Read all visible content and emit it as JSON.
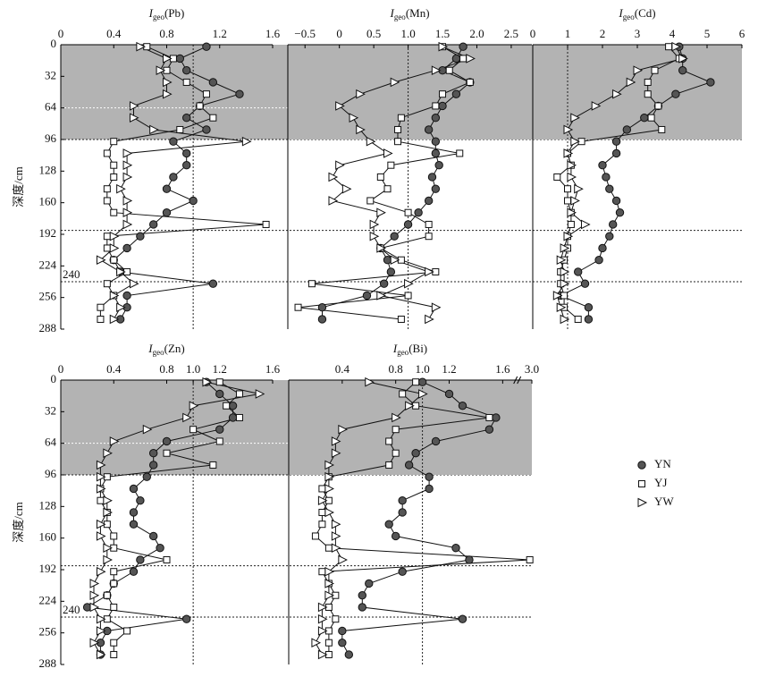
{
  "chart_data": [
    {
      "type": "line",
      "title_main": "I",
      "title_sub": "geo",
      "title_rest": "(Pb)",
      "ylabel": "深度/cm",
      "annotation": "240",
      "xlim": [
        0,
        1.6
      ],
      "xticks": [
        0,
        0.4,
        0.8,
        1.2,
        1.6
      ],
      "ylim": [
        0,
        288
      ],
      "y_inverted": true,
      "yticks": [
        0,
        32,
        64,
        96,
        128,
        160,
        192,
        224,
        256,
        288
      ],
      "shade": [
        0,
        96
      ],
      "reference_depths": [
        64,
        96,
        188,
        240
      ],
      "reference_x": 1,
      "y": [
        2,
        14,
        26,
        38,
        50,
        62,
        74,
        86,
        98,
        110,
        122,
        134,
        146,
        158,
        170,
        182,
        194,
        206,
        218,
        230,
        242,
        254,
        266,
        278
      ],
      "series": [
        {
          "name": "YN",
          "marker": "circle",
          "color": "#555555",
          "values": [
            1.1,
            0.9,
            0.95,
            1.15,
            1.35,
            1.05,
            0.95,
            1.1,
            0.85,
            0.95,
            0.95,
            0.85,
            0.8,
            1.0,
            0.8,
            0.7,
            0.6,
            0.5,
            0.4,
            0.45,
            1.15,
            0.5,
            0.5,
            0.45
          ]
        },
        {
          "name": "YJ",
          "marker": "square",
          "color": "#ffffff",
          "values": [
            0.65,
            0.85,
            0.8,
            0.95,
            1.1,
            1.05,
            1.15,
            0.9,
            0.4,
            0.35,
            0.4,
            0.4,
            0.35,
            0.35,
            0.4,
            1.55,
            0.35,
            0.35,
            0.4,
            0.5,
            0.35,
            0.4,
            0.3,
            0.3
          ]
        },
        {
          "name": "YW",
          "marker": "triangle",
          "color": "#ffffff",
          "values": [
            0.6,
            0.8,
            0.75,
            0.8,
            0.8,
            0.55,
            0.55,
            0.7,
            1.4,
            0.5,
            0.5,
            0.5,
            0.45,
            0.5,
            0.5,
            0.5,
            0.4,
            0.4,
            0.3,
            0.45,
            0.55,
            0.4,
            0.45,
            0.4
          ]
        }
      ]
    },
    {
      "type": "line",
      "title_main": "I",
      "title_sub": "geo",
      "title_rest": "(Mn)",
      "xlim": [
        -0.75,
        2.8
      ],
      "xticks": [
        {
          "value": -0.5,
          "label": "−0.5"
        },
        0,
        0.5,
        {
          "value": 1,
          "label": "1.0"
        },
        1.5,
        {
          "value": 2,
          "label": "2.0"
        },
        2.5
      ],
      "ylim": [
        0,
        288
      ],
      "y_inverted": true,
      "shade": [
        0,
        96
      ],
      "reference_x": 1,
      "y": [
        2,
        14,
        26,
        38,
        50,
        62,
        74,
        86,
        98,
        110,
        122,
        134,
        146,
        158,
        170,
        182,
        194,
        206,
        218,
        230,
        242,
        254,
        266,
        278
      ],
      "series": [
        {
          "name": "YN",
          "marker": "circle",
          "color": "#555555",
          "values": [
            1.8,
            1.7,
            1.5,
            1.9,
            1.7,
            1.5,
            1.4,
            1.3,
            1.4,
            1.4,
            1.45,
            1.35,
            1.4,
            1.3,
            1.15,
            1.0,
            0.8,
            0.6,
            0.7,
            0.75,
            0.65,
            0.4,
            -0.25,
            -0.25
          ]
        },
        {
          "name": "YJ",
          "marker": "square",
          "color": "#ffffff",
          "values": [
            1.5,
            1.8,
            1.6,
            1.9,
            1.5,
            1.4,
            0.9,
            0.85,
            0.85,
            1.75,
            0.75,
            0.6,
            0.7,
            0.45,
            1.0,
            1.3,
            1.3,
            0.6,
            0.9,
            1.4,
            -0.4,
            1.0,
            -0.6,
            0.9
          ]
        },
        {
          "name": "YW",
          "marker": "triangle",
          "color": "#ffffff",
          "values": [
            1.5,
            1.9,
            1.4,
            0.8,
            0.3,
            0.0,
            0.2,
            0.3,
            0.45,
            0.7,
            0.0,
            -0.1,
            0.1,
            -0.1,
            0.6,
            0.5,
            0.5,
            0.6,
            0.8,
            1.3,
            1.0,
            0.6,
            1.4,
            1.3
          ]
        }
      ]
    },
    {
      "type": "line",
      "title_main": "I",
      "title_sub": "geo",
      "title_rest": "(Cd)",
      "xlim": [
        0,
        6
      ],
      "xticks": [
        0,
        1,
        2,
        3,
        4,
        5,
        6
      ],
      "ylim": [
        0,
        288
      ],
      "y_inverted": true,
      "shade": [
        0,
        96
      ],
      "reference_x": 1,
      "y": [
        2,
        14,
        26,
        38,
        50,
        62,
        74,
        86,
        98,
        110,
        122,
        134,
        146,
        158,
        170,
        182,
        194,
        206,
        218,
        230,
        242,
        254,
        266,
        278
      ],
      "series": [
        {
          "name": "YN",
          "marker": "circle",
          "color": "#555555",
          "values": [
            4.2,
            4.3,
            4.3,
            5.1,
            4.1,
            3.6,
            3.2,
            2.7,
            2.4,
            2.4,
            2.0,
            2.1,
            2.2,
            2.4,
            2.5,
            2.3,
            2.2,
            2.0,
            1.9,
            1.3,
            1.5,
            0.8,
            1.6,
            1.6
          ]
        },
        {
          "name": "YJ",
          "marker": "square",
          "color": "#ffffff",
          "values": [
            3.9,
            4.2,
            3.5,
            3.3,
            3.3,
            3.6,
            3.4,
            3.7,
            1.4,
            1.0,
            1.1,
            0.7,
            1.0,
            1.0,
            1.1,
            1.1,
            1.0,
            1.0,
            0.9,
            0.8,
            0.8,
            0.9,
            0.9,
            1.3
          ]
        },
        {
          "name": "YW",
          "marker": "triangle",
          "color": "#ffffff",
          "values": [
            4.1,
            4.3,
            3.0,
            2.8,
            2.4,
            1.8,
            1.2,
            1.0,
            1.2,
            1.0,
            1.1,
            1.1,
            1.3,
            1.2,
            1.1,
            1.5,
            1.0,
            0.9,
            0.8,
            0.9,
            0.9,
            0.7,
            0.8,
            0.9
          ]
        }
      ]
    },
    {
      "type": "line",
      "title_main": "I",
      "title_sub": "geo",
      "title_rest": "(Zn)",
      "ylabel": "深度/cm",
      "annotation": "240",
      "xlim": [
        0,
        1.6
      ],
      "xticks": [
        0,
        0.4,
        0.8,
        {
          "value": 1,
          "label": "1.0"
        },
        1.2,
        1.6
      ],
      "ylim": [
        0,
        288
      ],
      "y_inverted": true,
      "yticks": [
        0,
        32,
        64,
        96,
        128,
        160,
        192,
        224,
        256,
        288
      ],
      "shade": [
        0,
        96
      ],
      "reference_depths": [
        64,
        96,
        188,
        240
      ],
      "reference_x": 1,
      "y": [
        2,
        14,
        26,
        38,
        50,
        62,
        74,
        86,
        98,
        110,
        122,
        134,
        146,
        158,
        170,
        182,
        194,
        206,
        218,
        230,
        242,
        254,
        266,
        278
      ],
      "series": [
        {
          "name": "YN",
          "marker": "circle",
          "color": "#555555",
          "values": [
            1.1,
            1.2,
            1.3,
            1.3,
            1.2,
            0.8,
            0.7,
            0.7,
            0.65,
            0.55,
            0.6,
            0.55,
            0.55,
            0.7,
            0.75,
            0.6,
            0.55,
            0.4,
            0.35,
            0.2,
            0.95,
            0.35,
            0.3,
            0.3
          ]
        },
        {
          "name": "YJ",
          "marker": "square",
          "color": "#ffffff",
          "values": [
            1.2,
            1.35,
            1.25,
            1.35,
            1.0,
            1.2,
            0.8,
            1.15,
            0.35,
            0.3,
            0.3,
            0.35,
            0.35,
            0.4,
            0.4,
            0.8,
            0.4,
            0.4,
            0.35,
            0.4,
            0.35,
            0.5,
            0.4,
            0.4
          ]
        },
        {
          "name": "YW",
          "marker": "triangle",
          "color": "#ffffff",
          "values": [
            1.1,
            1.5,
            1.0,
            0.95,
            0.65,
            0.4,
            0.35,
            0.3,
            0.3,
            0.3,
            0.35,
            0.35,
            0.3,
            0.3,
            0.35,
            0.35,
            0.3,
            0.25,
            0.25,
            0.25,
            0.3,
            0.3,
            0.25,
            0.3
          ]
        }
      ]
    },
    {
      "type": "line",
      "title_main": "I",
      "title_sub": "geo",
      "title_rest": "(Bi)",
      "broken_axis": true,
      "xlim": [
        0,
        3.0
      ],
      "xticks": [
        0.4,
        0.8,
        {
          "value": 1,
          "label": "1.0"
        },
        1.2,
        1.6,
        {
          "value": 3,
          "label": "3.0"
        }
      ],
      "ylim": [
        0,
        288
      ],
      "y_inverted": true,
      "shade": [
        0,
        96
      ],
      "reference_x": 1,
      "y": [
        2,
        14,
        26,
        38,
        50,
        62,
        74,
        86,
        98,
        110,
        122,
        134,
        146,
        158,
        170,
        182,
        194,
        206,
        218,
        230,
        242,
        254,
        266,
        278
      ],
      "series": [
        {
          "name": "YN",
          "marker": "circle",
          "color": "#555555",
          "values": [
            1.0,
            1.2,
            1.3,
            1.55,
            1.5,
            1.1,
            0.95,
            0.9,
            1.05,
            1.05,
            0.85,
            0.85,
            0.75,
            0.8,
            1.25,
            1.35,
            0.85,
            0.6,
            0.55,
            0.55,
            1.3,
            0.4,
            0.4,
            0.45
          ]
        },
        {
          "name": "YJ",
          "marker": "square",
          "color": "#ffffff",
          "values": [
            0.95,
            0.85,
            0.95,
            1.5,
            0.8,
            0.75,
            0.8,
            0.75,
            0.3,
            0.25,
            0.3,
            0.25,
            0.25,
            0.2,
            0.3,
            2.9,
            0.25,
            0.3,
            0.35,
            0.3,
            0.35,
            0.3,
            0.3,
            0.3
          ]
        },
        {
          "name": "YW",
          "marker": "triangle",
          "color": "#ffffff",
          "values": [
            0.6,
            1.0,
            0.9,
            0.8,
            0.4,
            0.35,
            0.35,
            0.3,
            0.3,
            0.3,
            0.25,
            0.3,
            0.35,
            0.35,
            0.35,
            0.4,
            0.3,
            0.3,
            0.3,
            0.25,
            0.25,
            0.25,
            0.2,
            0.25
          ]
        }
      ]
    }
  ]
}
